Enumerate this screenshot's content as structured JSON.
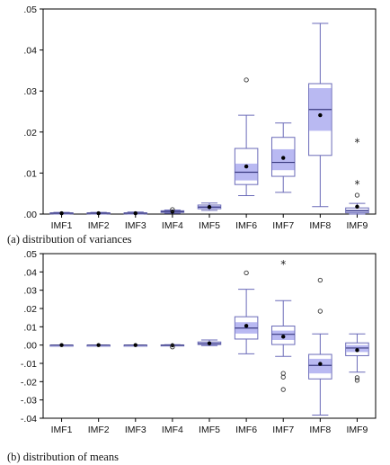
{
  "colors": {
    "box_fill": "#ffffff",
    "box_stroke": "#6a6ab8",
    "notch_fill": "#b9b9f2",
    "median": "#3a3a80",
    "mean_dot": "#000000",
    "frame": "#000000"
  },
  "chart_data": [
    {
      "type": "boxplot",
      "caption": "(a) distribution of variances",
      "ylim": [
        0,
        0.05
      ],
      "yticks": [
        0,
        0.01,
        0.02,
        0.03,
        0.04,
        0.05
      ],
      "ytick_labels": [
        ".00",
        ".01",
        ".02",
        ".03",
        ".04",
        ".05"
      ],
      "categories": [
        "IMF1",
        "IMF2",
        "IMF3",
        "IMF4",
        "IMF5",
        "IMF6",
        "IMF7",
        "IMF8",
        "IMF9"
      ],
      "boxes": [
        {
          "category": "IMF1",
          "min": 0.0,
          "q1": 0.0001,
          "median": 0.0002,
          "q3": 0.0003,
          "max": 0.0004,
          "mean": 0.0002,
          "notch": [
            0.00015,
            0.00025
          ],
          "outliers": [],
          "extremes": []
        },
        {
          "category": "IMF2",
          "min": 0.0,
          "q1": 0.0001,
          "median": 0.0002,
          "q3": 0.0003,
          "max": 0.0004,
          "mean": 0.0002,
          "notch": [
            0.00015,
            0.00025
          ],
          "outliers": [],
          "extremes": []
        },
        {
          "category": "IMF3",
          "min": 0.0,
          "q1": 0.0001,
          "median": 0.0002,
          "q3": 0.0003,
          "max": 0.0005,
          "mean": 0.0002,
          "notch": [
            0.00015,
            0.00025
          ],
          "outliers": [],
          "extremes": []
        },
        {
          "category": "IMF4",
          "min": 0.0002,
          "q1": 0.0004,
          "median": 0.0006,
          "q3": 0.0008,
          "max": 0.001,
          "mean": 0.0006,
          "notch": [
            0.0005,
            0.0007
          ],
          "outliers": [
            0.0011
          ],
          "extremes": []
        },
        {
          "category": "IMF5",
          "min": 0.0009,
          "q1": 0.0013,
          "median": 0.0017,
          "q3": 0.0022,
          "max": 0.0027,
          "mean": 0.0017,
          "notch": [
            0.0014,
            0.002
          ],
          "outliers": [],
          "extremes": []
        },
        {
          "category": "IMF6",
          "min": 0.0045,
          "q1": 0.0072,
          "median": 0.0102,
          "q3": 0.016,
          "max": 0.0241,
          "mean": 0.0116,
          "notch": [
            0.0082,
            0.0123
          ],
          "outliers": [
            0.0327
          ],
          "extremes": []
        },
        {
          "category": "IMF7",
          "min": 0.0053,
          "q1": 0.0092,
          "median": 0.0126,
          "q3": 0.0187,
          "max": 0.0222,
          "mean": 0.0137,
          "notch": [
            0.0107,
            0.0158
          ],
          "outliers": [],
          "extremes": []
        },
        {
          "category": "IMF8",
          "min": 0.0018,
          "q1": 0.0143,
          "median": 0.0255,
          "q3": 0.0318,
          "max": 0.0465,
          "mean": 0.0241,
          "notch": [
            0.0203,
            0.0307
          ],
          "outliers": [],
          "extremes": []
        },
        {
          "category": "IMF9",
          "min": 0.0,
          "q1": 0.0003,
          "median": 0.0008,
          "q3": 0.0015,
          "max": 0.0026,
          "mean": 0.0018,
          "notch": [
            0.0005,
            0.0011
          ],
          "outliers": [
            0.0046
          ],
          "extremes": [
            0.0176,
            0.0075
          ]
        }
      ]
    },
    {
      "type": "boxplot",
      "caption": "(b) distribution of means",
      "ylim": [
        -0.04,
        0.05
      ],
      "yticks": [
        -0.04,
        -0.03,
        -0.02,
        -0.01,
        0,
        0.01,
        0.02,
        0.03,
        0.04,
        0.05
      ],
      "ytick_labels": [
        "-.04",
        "-.03",
        "-.02",
        "-.01",
        ".00",
        ".01",
        ".02",
        ".03",
        ".04",
        ".05"
      ],
      "categories": [
        "IMF1",
        "IMF2",
        "IMF3",
        "IMF4",
        "IMF5",
        "IMF6",
        "IMF7",
        "IMF8",
        "IMF9"
      ],
      "boxes": [
        {
          "category": "IMF1",
          "min": 0.0,
          "q1": 0.0,
          "median": 0.0,
          "q3": 0.0,
          "max": 0.0,
          "mean": 0.0,
          "notch": [
            0.0,
            0.0
          ],
          "outliers": [],
          "extremes": []
        },
        {
          "category": "IMF2",
          "min": 0.0,
          "q1": 0.0,
          "median": 0.0,
          "q3": 0.0,
          "max": 0.0,
          "mean": 0.0,
          "notch": [
            0.0,
            0.0
          ],
          "outliers": [],
          "extremes": []
        },
        {
          "category": "IMF3",
          "min": 0.0,
          "q1": 0.0,
          "median": 0.0,
          "q3": 0.0,
          "max": 0.0,
          "mean": 0.0,
          "notch": [
            0.0,
            0.0
          ],
          "outliers": [],
          "extremes": []
        },
        {
          "category": "IMF4",
          "min": -0.0004,
          "q1": -0.0002,
          "median": -0.0001,
          "q3": 0.0001,
          "max": 0.0002,
          "mean": -0.0001,
          "notch": [
            -0.0002,
            0.0
          ],
          "outliers": [
            -0.001
          ],
          "extremes": []
        },
        {
          "category": "IMF5",
          "min": -0.0003,
          "q1": 0.0003,
          "median": 0.0008,
          "q3": 0.0017,
          "max": 0.0028,
          "mean": 0.0009,
          "notch": [
            0.0004,
            0.0013
          ],
          "outliers": [],
          "extremes": []
        },
        {
          "category": "IMF6",
          "min": -0.0048,
          "q1": 0.0033,
          "median": 0.0093,
          "q3": 0.0155,
          "max": 0.0305,
          "mean": 0.0105,
          "notch": [
            0.0063,
            0.0125
          ],
          "outliers": [
            0.0395
          ],
          "extremes": []
        },
        {
          "category": "IMF7",
          "min": -0.0062,
          "q1": 0.0003,
          "median": 0.0059,
          "q3": 0.0104,
          "max": 0.0243,
          "mean": 0.0046,
          "notch": [
            0.0028,
            0.0079
          ],
          "outliers": [
            -0.0155,
            -0.0175,
            -0.0243
          ],
          "extremes": [
            0.0447
          ]
        },
        {
          "category": "IMF8",
          "min": -0.0383,
          "q1": -0.0185,
          "median": -0.0111,
          "q3": -0.0051,
          "max": 0.0061,
          "mean": -0.0103,
          "notch": [
            -0.0155,
            -0.0075
          ],
          "outliers": [
            0.0355,
            0.0185
          ],
          "extremes": []
        },
        {
          "category": "IMF9",
          "min": -0.0148,
          "q1": -0.0058,
          "median": -0.0016,
          "q3": 0.0012,
          "max": 0.0061,
          "mean": -0.0028,
          "notch": [
            -0.0038,
            0.0
          ],
          "outliers": [
            -0.0178,
            -0.0193
          ],
          "extremes": []
        }
      ]
    }
  ]
}
